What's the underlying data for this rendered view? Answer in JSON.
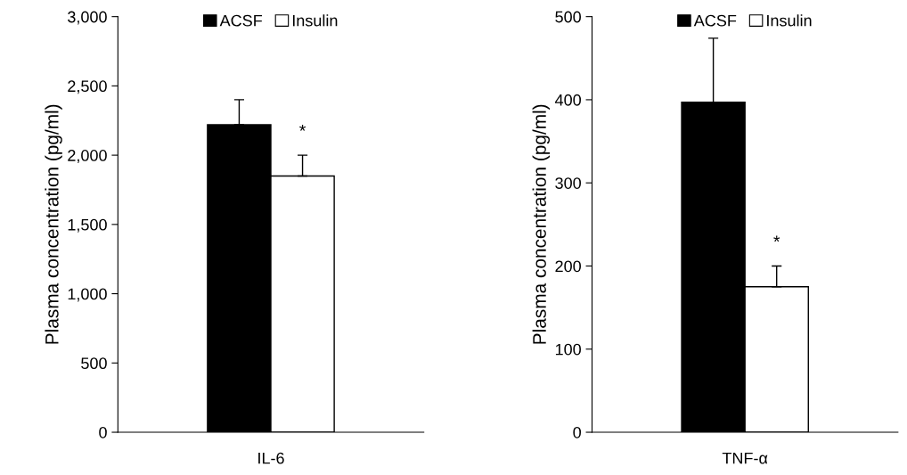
{
  "chart_data": [
    {
      "type": "bar",
      "categories": [
        "IL-6"
      ],
      "ylabel": "Plasma concentration (pg/ml)",
      "ylim": [
        0,
        3000
      ],
      "yticks": [
        {
          "value": 0,
          "label": "0"
        },
        {
          "value": 500,
          "label": "500"
        },
        {
          "value": 1000,
          "label": "1,000"
        },
        {
          "value": 1500,
          "label": "1,500"
        },
        {
          "value": 2000,
          "label": "2,000"
        },
        {
          "value": 2500,
          "label": "2,500"
        },
        {
          "value": 3000,
          "label": "3,000"
        }
      ],
      "series": [
        {
          "name": "ACSF",
          "color": "#000000",
          "values": [
            2220
          ],
          "errors": [
            180
          ]
        },
        {
          "name": "Insulin",
          "color": "#ffffff",
          "values": [
            1850
          ],
          "errors": [
            150
          ]
        }
      ],
      "annotations": [
        {
          "text": "*",
          "x": "IL-6",
          "y": 2000
        }
      ],
      "legend": "top",
      "grid": false
    },
    {
      "type": "bar",
      "categories": [
        "TNF-α"
      ],
      "ylabel": "Plasma concentration (pg/ml)",
      "ylim": [
        0,
        500
      ],
      "yticks": [
        0,
        100,
        200,
        300,
        400,
        500
      ],
      "series": [
        {
          "name": "ACSF",
          "color": "#000000",
          "values": [
            397
          ],
          "errors": [
            77
          ]
        },
        {
          "name": "Insulin",
          "color": "#ffffff",
          "values": [
            175
          ],
          "errors": [
            25
          ]
        }
      ],
      "annotations": [
        {
          "text": "*",
          "x": "TNF-α",
          "y": 200
        }
      ],
      "legend": "top",
      "grid": false
    }
  ]
}
